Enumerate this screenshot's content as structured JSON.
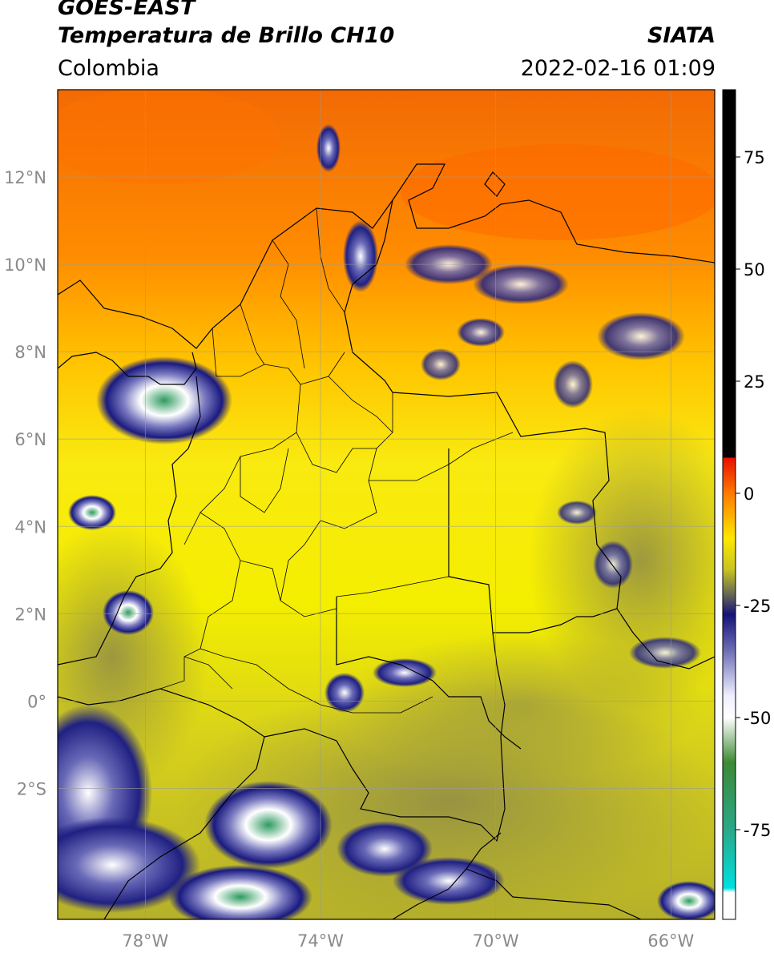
{
  "header": {
    "satellite": "GOES-EAST",
    "product": "Temperatura de Brillo CH10",
    "brand": "SIATA",
    "region": "Colombia",
    "datetime": "2022-02-16 01:09"
  },
  "map": {
    "lon_range": [
      -80,
      -65
    ],
    "lat_range": [
      -5,
      14
    ],
    "lon_ticks": [
      {
        "value": -78,
        "label": "78°W"
      },
      {
        "value": -74,
        "label": "74°W"
      },
      {
        "value": -70,
        "label": "70°W"
      },
      {
        "value": -66,
        "label": "66°W"
      }
    ],
    "lat_ticks": [
      {
        "value": 12,
        "label": "12°N"
      },
      {
        "value": 10,
        "label": "10°N"
      },
      {
        "value": 8,
        "label": "8°N"
      },
      {
        "value": 6,
        "label": "6°N"
      },
      {
        "value": 4,
        "label": "4°N"
      },
      {
        "value": 2,
        "label": "2°N"
      },
      {
        "value": 0,
        "label": "0°"
      },
      {
        "value": -2,
        "label": "2°S"
      }
    ],
    "grid": true
  },
  "colorbar": {
    "range": [
      -95,
      90
    ],
    "ticks": [
      {
        "value": 75,
        "label": "75"
      },
      {
        "value": 50,
        "label": "50"
      },
      {
        "value": 25,
        "label": "25"
      },
      {
        "value": 0,
        "label": "0"
      },
      {
        "value": -25,
        "label": "-25"
      },
      {
        "value": -50,
        "label": "-50"
      },
      {
        "value": -75,
        "label": "-75"
      }
    ],
    "stops": [
      {
        "value": 90,
        "color": "#000000"
      },
      {
        "value": 8,
        "color": "#000000"
      },
      {
        "value": 7.9,
        "color": "#e81000"
      },
      {
        "value": 0,
        "color": "#ff7a00"
      },
      {
        "value": -10,
        "color": "#ffe800"
      },
      {
        "value": -17,
        "color": "#c8c421"
      },
      {
        "value": -22,
        "color": "#707050"
      },
      {
        "value": -27,
        "color": "#141478"
      },
      {
        "value": -35,
        "color": "#6d6db5"
      },
      {
        "value": -45,
        "color": "#eeeeff"
      },
      {
        "value": -50,
        "color": "#ffffff"
      },
      {
        "value": -60,
        "color": "#3d8a35"
      },
      {
        "value": -75,
        "color": "#2aa888"
      },
      {
        "value": -88,
        "color": "#00e0e0"
      },
      {
        "value": -89,
        "color": "#ffffff"
      },
      {
        "value": -95,
        "color": "#ffffff"
      }
    ]
  }
}
